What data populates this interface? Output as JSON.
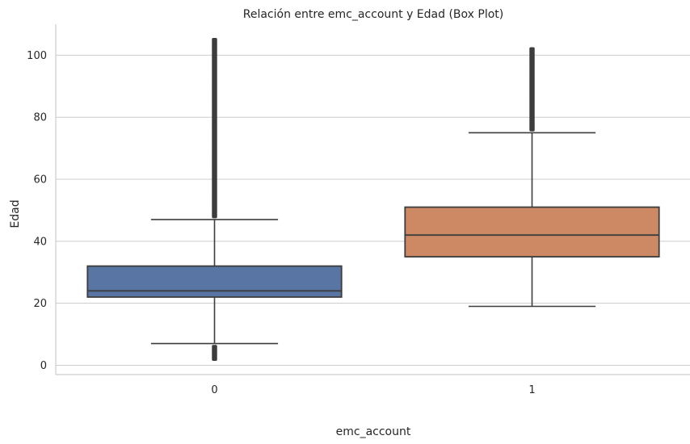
{
  "chart_data": {
    "type": "box",
    "title": "Relación entre emc_account y Edad (Box Plot)",
    "xlabel": "emc_account",
    "ylabel": "Edad",
    "ylim": [
      -3,
      110
    ],
    "yticks": [
      0,
      20,
      40,
      60,
      80,
      100
    ],
    "grid": "horizontal",
    "categories": [
      "0",
      "1"
    ],
    "series": [
      {
        "category": "0",
        "whisker_low": 7,
        "q1": 22,
        "median": 24,
        "q3": 32,
        "whisker_high": 47,
        "outliers_low": [
          2,
          6
        ],
        "outliers_high": [
          48,
          105
        ],
        "color": "#5875a4"
      },
      {
        "category": "1",
        "whisker_low": 19,
        "q1": 35,
        "median": 42,
        "q3": 51,
        "whisker_high": 75,
        "outliers_low": [],
        "outliers_high": [
          76,
          102
        ],
        "color": "#cc8963"
      }
    ]
  }
}
